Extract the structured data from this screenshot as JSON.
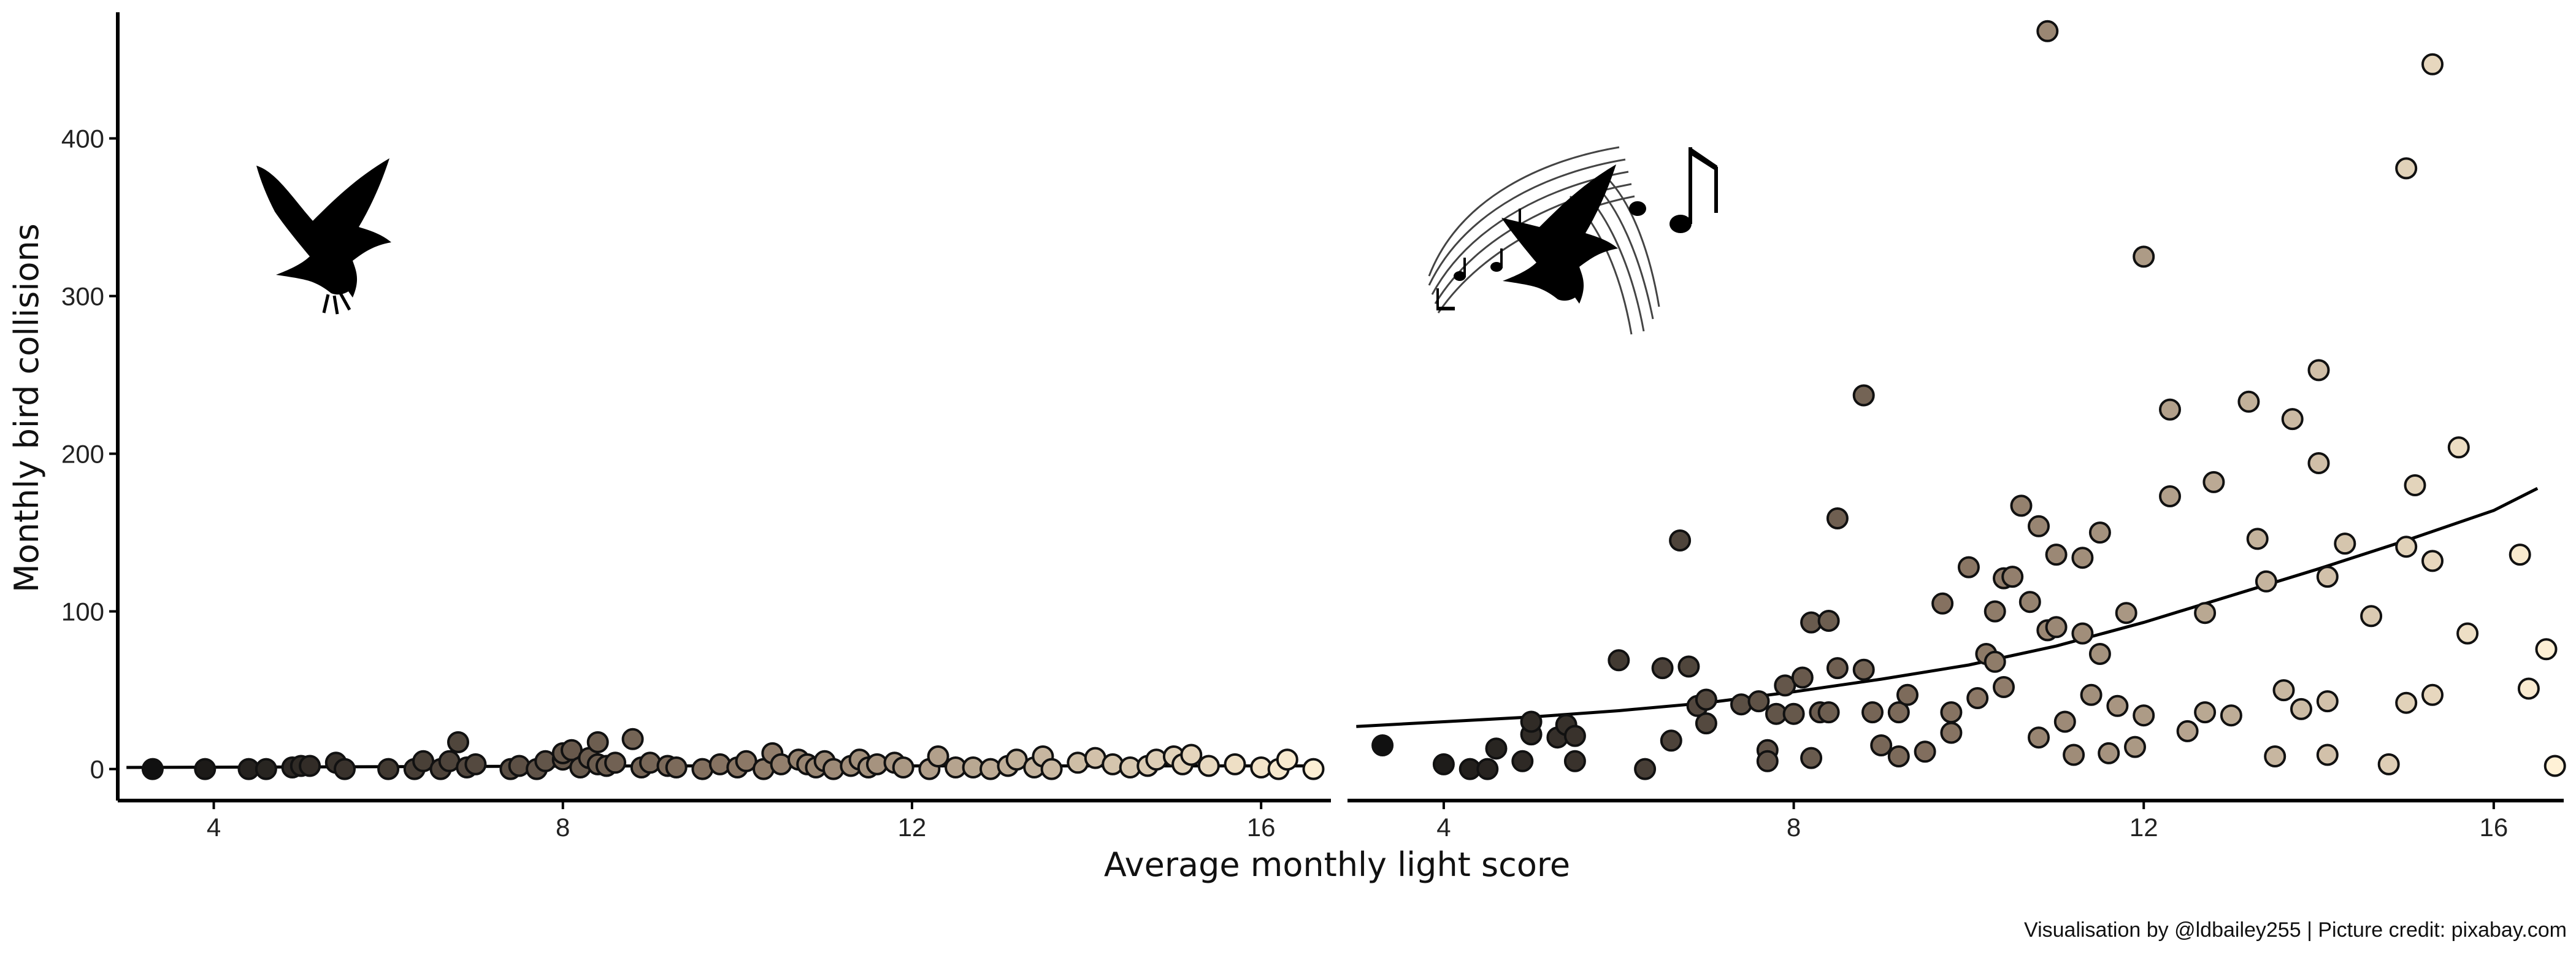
{
  "colors": {
    "point_dark": "#111111",
    "point_mid": "#8a7664",
    "point_light": "#fff1d6",
    "point_stroke": "#111111",
    "axis": "#000000",
    "trend": "#000000"
  },
  "icons": [
    "bird-silhouette-icon",
    "singing-bird-music-notes-icon"
  ],
  "chart_data": {
    "type": "scatter",
    "xlabel": "Average monthly light score",
    "ylabel": "Monthly bird collisions",
    "caption": "Visualisation by @ldbailey255 | Picture credit: pixabay.com",
    "grid": false,
    "legend": "none",
    "ylim": [
      -20,
      480
    ],
    "x_ticks": [
      4,
      8,
      12,
      16
    ],
    "y_ticks": [
      0,
      100,
      200,
      300,
      400
    ],
    "panels": [
      {
        "icon": "bird-silhouette-icon",
        "xlim": [
          2.9,
          16.8
        ],
        "trend": [
          [
            3.0,
            1
          ],
          [
            6.0,
            1.5
          ],
          [
            9.0,
            2
          ],
          [
            12.0,
            2
          ],
          [
            14.0,
            2
          ],
          [
            16.5,
            2
          ]
        ],
        "points": [
          [
            3.3,
            0
          ],
          [
            3.9,
            0
          ],
          [
            4.4,
            0
          ],
          [
            4.6,
            0
          ],
          [
            4.9,
            1
          ],
          [
            5.0,
            2
          ],
          [
            5.1,
            2
          ],
          [
            5.4,
            4
          ],
          [
            5.5,
            0
          ],
          [
            6.0,
            0
          ],
          [
            6.3,
            0
          ],
          [
            6.4,
            5
          ],
          [
            6.6,
            0
          ],
          [
            6.7,
            5
          ],
          [
            6.8,
            17
          ],
          [
            6.9,
            1
          ],
          [
            7.0,
            3
          ],
          [
            7.4,
            0
          ],
          [
            7.5,
            2
          ],
          [
            7.7,
            0
          ],
          [
            7.8,
            5
          ],
          [
            8.0,
            6
          ],
          [
            8.0,
            10
          ],
          [
            8.1,
            12
          ],
          [
            8.2,
            1
          ],
          [
            8.3,
            7
          ],
          [
            8.4,
            3
          ],
          [
            8.4,
            17
          ],
          [
            8.5,
            2
          ],
          [
            8.6,
            4
          ],
          [
            8.8,
            19
          ],
          [
            8.9,
            1
          ],
          [
            9.0,
            4
          ],
          [
            9.2,
            2
          ],
          [
            9.3,
            1
          ],
          [
            9.6,
            0
          ],
          [
            9.8,
            3
          ],
          [
            10.0,
            1
          ],
          [
            10.1,
            5
          ],
          [
            10.3,
            0
          ],
          [
            10.4,
            10
          ],
          [
            10.5,
            3
          ],
          [
            10.7,
            6
          ],
          [
            10.8,
            3
          ],
          [
            10.9,
            1
          ],
          [
            11.0,
            5
          ],
          [
            11.1,
            0
          ],
          [
            11.3,
            2
          ],
          [
            11.4,
            6
          ],
          [
            11.5,
            1
          ],
          [
            11.6,
            3
          ],
          [
            11.8,
            4
          ],
          [
            11.9,
            1
          ],
          [
            12.2,
            0
          ],
          [
            12.3,
            8
          ],
          [
            12.5,
            1
          ],
          [
            12.7,
            1
          ],
          [
            12.9,
            0
          ],
          [
            13.1,
            2
          ],
          [
            13.2,
            6
          ],
          [
            13.4,
            1
          ],
          [
            13.5,
            8
          ],
          [
            13.6,
            0
          ],
          [
            13.9,
            4
          ],
          [
            14.1,
            7
          ],
          [
            14.3,
            3
          ],
          [
            14.5,
            1
          ],
          [
            14.7,
            2
          ],
          [
            14.8,
            6
          ],
          [
            15.0,
            8
          ],
          [
            15.1,
            3
          ],
          [
            15.2,
            9
          ],
          [
            15.4,
            2
          ],
          [
            15.7,
            3
          ],
          [
            16.0,
            1
          ],
          [
            16.2,
            0
          ],
          [
            16.3,
            6
          ],
          [
            16.6,
            0
          ]
        ]
      },
      {
        "icon": "singing-bird-music-notes-icon",
        "xlim": [
          2.9,
          16.8
        ],
        "trend": [
          [
            3.0,
            27
          ],
          [
            4.0,
            30
          ],
          [
            5.0,
            33
          ],
          [
            6.0,
            37
          ],
          [
            7.0,
            42
          ],
          [
            8.0,
            49
          ],
          [
            9.0,
            57
          ],
          [
            10.0,
            66
          ],
          [
            11.0,
            78
          ],
          [
            12.0,
            93
          ],
          [
            13.0,
            110
          ],
          [
            14.0,
            127
          ],
          [
            15.0,
            145
          ],
          [
            16.0,
            164
          ],
          [
            16.5,
            178
          ]
        ],
        "points": [
          [
            3.3,
            15
          ],
          [
            4.0,
            3
          ],
          [
            4.3,
            0
          ],
          [
            4.5,
            0
          ],
          [
            4.6,
            13
          ],
          [
            4.9,
            5
          ],
          [
            5.0,
            22
          ],
          [
            5.0,
            30
          ],
          [
            5.3,
            20
          ],
          [
            5.4,
            28
          ],
          [
            5.5,
            5
          ],
          [
            5.5,
            21
          ],
          [
            6.0,
            69
          ],
          [
            6.3,
            0
          ],
          [
            6.5,
            64
          ],
          [
            6.6,
            18
          ],
          [
            6.7,
            145
          ],
          [
            6.8,
            65
          ],
          [
            6.9,
            40
          ],
          [
            7.0,
            29
          ],
          [
            7.0,
            44
          ],
          [
            7.4,
            41
          ],
          [
            7.6,
            43
          ],
          [
            7.7,
            12
          ],
          [
            7.7,
            5
          ],
          [
            7.8,
            35
          ],
          [
            7.9,
            53
          ],
          [
            8.0,
            35
          ],
          [
            8.1,
            58
          ],
          [
            8.2,
            93
          ],
          [
            8.2,
            7
          ],
          [
            8.3,
            36
          ],
          [
            8.4,
            94
          ],
          [
            8.4,
            36
          ],
          [
            8.5,
            159
          ],
          [
            8.5,
            64
          ],
          [
            8.8,
            63
          ],
          [
            8.8,
            237
          ],
          [
            8.9,
            36
          ],
          [
            9.0,
            15
          ],
          [
            9.2,
            36
          ],
          [
            9.2,
            8
          ],
          [
            9.3,
            47
          ],
          [
            9.5,
            11
          ],
          [
            9.7,
            105
          ],
          [
            9.8,
            36
          ],
          [
            9.8,
            23
          ],
          [
            10.0,
            128
          ],
          [
            10.1,
            45
          ],
          [
            10.2,
            73
          ],
          [
            10.3,
            100
          ],
          [
            10.3,
            68
          ],
          [
            10.4,
            121
          ],
          [
            10.4,
            52
          ],
          [
            10.5,
            122
          ],
          [
            10.6,
            167
          ],
          [
            10.7,
            106
          ],
          [
            10.8,
            154
          ],
          [
            10.8,
            20
          ],
          [
            10.9,
            88
          ],
          [
            10.9,
            468
          ],
          [
            11.0,
            136
          ],
          [
            11.0,
            90
          ],
          [
            11.1,
            30
          ],
          [
            11.2,
            9
          ],
          [
            11.3,
            86
          ],
          [
            11.3,
            134
          ],
          [
            11.4,
            47
          ],
          [
            11.5,
            150
          ],
          [
            11.5,
            73
          ],
          [
            11.6,
            10
          ],
          [
            11.7,
            40
          ],
          [
            11.8,
            99
          ],
          [
            11.9,
            14
          ],
          [
            12.0,
            34
          ],
          [
            12.0,
            325
          ],
          [
            12.3,
            228
          ],
          [
            12.3,
            173
          ],
          [
            12.5,
            24
          ],
          [
            12.7,
            36
          ],
          [
            12.7,
            99
          ],
          [
            12.8,
            182
          ],
          [
            13.0,
            34
          ],
          [
            13.2,
            233
          ],
          [
            13.3,
            146
          ],
          [
            13.4,
            119
          ],
          [
            13.5,
            8
          ],
          [
            13.6,
            50
          ],
          [
            13.7,
            222
          ],
          [
            13.8,
            38
          ],
          [
            14.0,
            253
          ],
          [
            14.0,
            194
          ],
          [
            14.1,
            122
          ],
          [
            14.1,
            43
          ],
          [
            14.1,
            9
          ],
          [
            14.3,
            143
          ],
          [
            14.6,
            97
          ],
          [
            14.8,
            3
          ],
          [
            15.0,
            381
          ],
          [
            15.0,
            42
          ],
          [
            15.0,
            141
          ],
          [
            15.1,
            180
          ],
          [
            15.3,
            132
          ],
          [
            15.3,
            47
          ],
          [
            15.3,
            447
          ],
          [
            15.6,
            204
          ],
          [
            15.7,
            86
          ],
          [
            16.3,
            136
          ],
          [
            16.4,
            51
          ],
          [
            16.6,
            76
          ],
          [
            16.7,
            2
          ]
        ]
      }
    ]
  }
}
